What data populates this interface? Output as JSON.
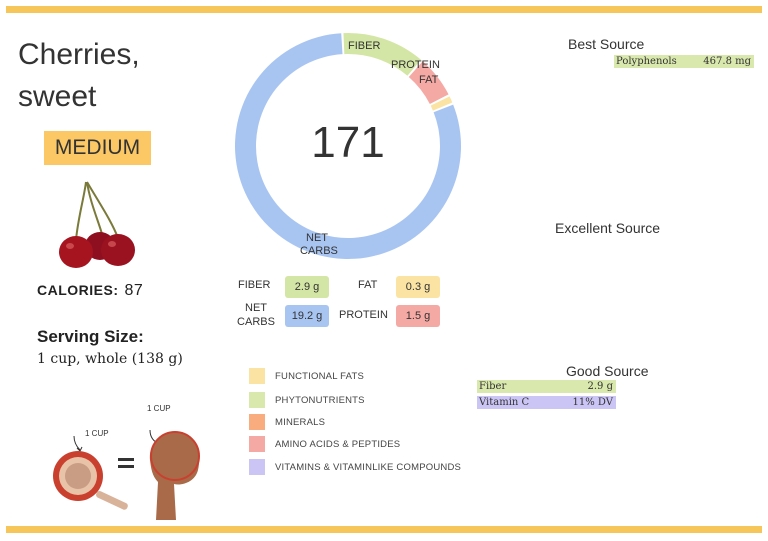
{
  "food": {
    "name": "Cherries, sweet",
    "size": "MEDIUM"
  },
  "calories": {
    "label": "CALORIES:",
    "value": "87"
  },
  "serving": {
    "heading": "Serving Size:",
    "value": "1 cup, whole (138 g)"
  },
  "comparison": {
    "cup_label": "1 CUP",
    "fist_label": "1 CUP",
    "equals": "="
  },
  "donut": {
    "center_value": "171",
    "segments": [
      {
        "name": "NET CARBS",
        "grams": 19.2,
        "color": "#a8c5f2"
      },
      {
        "name": "FIBER",
        "grams": 2.9,
        "color": "#d4e6a5"
      },
      {
        "name": "PROTEIN",
        "grams": 1.5,
        "color": "#f5a9a4"
      },
      {
        "name": "FAT",
        "grams": 0.3,
        "color": "#fbe3a4"
      }
    ]
  },
  "labels": {
    "fiber": "FIBER",
    "protein": "PROTEIN",
    "fat": "FAT",
    "net": "NET",
    "carbs": "CARBS"
  },
  "nutrients": {
    "fiber": {
      "label": "FIBER",
      "value": "2.9 g",
      "color": "#d4e6a5"
    },
    "fat": {
      "label": "FAT",
      "value": "0.3 g",
      "color": "#fbe3a4"
    },
    "net_carbs": {
      "label1": "NET",
      "label2": "CARBS",
      "value": "19.2 g",
      "color": "#a8c5f2"
    },
    "protein": {
      "label": "PROTEIN",
      "value": "1.5 g",
      "color": "#f5a9a4"
    }
  },
  "legend": [
    {
      "label": "FUNCTIONAL FATS",
      "color": "#fbe3a4"
    },
    {
      "label": "PHYTONUTRIENTS",
      "color": "#d9e8ad"
    },
    {
      "label": "MINERALS",
      "color": "#f9ad7f"
    },
    {
      "label": "AMINO ACIDS & PEPTIDES",
      "color": "#f5a9a4"
    },
    {
      "label": "VITAMINS & VITAMINLIKE COMPOUNDS",
      "color": "#cbc5f5"
    }
  ],
  "sources": {
    "best": {
      "heading": "Best Source",
      "items": [
        {
          "name": "Polyphenols",
          "value": "467.8 mg",
          "color": "#d9e8ad"
        }
      ]
    },
    "excellent": {
      "heading": "Excellent Source"
    },
    "good": {
      "heading": "Good Source",
      "items": [
        {
          "name": "Fiber",
          "value": "2.9 g",
          "color": "#d9e8ad"
        },
        {
          "name": "Vitamin C",
          "value": "11% DV",
          "color": "#cbc5f5"
        }
      ]
    }
  }
}
